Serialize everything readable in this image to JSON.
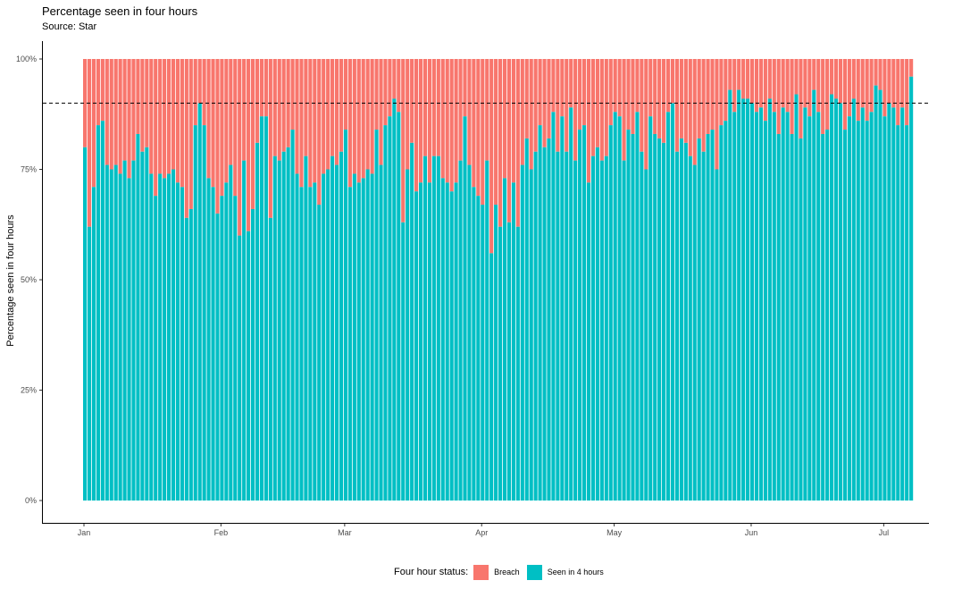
{
  "chart": {
    "title": "Percentage seen in four hours",
    "subtitle": "Source: Star"
  },
  "legend": {
    "title": "Four hour status:",
    "items": [
      {
        "label": "Breach",
        "color": "#F8766D"
      },
      {
        "label": "Seen in 4 hours",
        "color": "#00BFC4"
      }
    ]
  },
  "chart_data": {
    "type": "bar",
    "stacked": true,
    "ylabel": "Percentage seen in four hours",
    "xlabel": "",
    "ylim": [
      0,
      1
    ],
    "y_ticks": [
      "0%",
      "25%",
      "50%",
      "75%",
      "100%"
    ],
    "x_tick_labels": [
      "Jan",
      "Feb",
      "Mar",
      "Apr",
      "May",
      "Jun",
      "Jul"
    ],
    "x_range": [
      "2018-01-01",
      "2018-07-01"
    ],
    "reference_line": {
      "value": 0.9,
      "style": "dashed"
    },
    "series": [
      {
        "name": "Breach",
        "color": "#F8766D"
      },
      {
        "name": "Seen in 4 hours",
        "color": "#00BFC4"
      }
    ],
    "seen_in_4_hours": [
      0.8,
      0.62,
      0.71,
      0.85,
      0.86,
      0.76,
      0.75,
      0.76,
      0.74,
      0.77,
      0.73,
      0.77,
      0.83,
      0.79,
      0.8,
      0.74,
      0.69,
      0.74,
      0.73,
      0.74,
      0.75,
      0.72,
      0.71,
      0.64,
      0.66,
      0.85,
      0.9,
      0.85,
      0.73,
      0.71,
      0.65,
      0.69,
      0.72,
      0.76,
      0.69,
      0.6,
      0.77,
      0.61,
      0.66,
      0.81,
      0.87,
      0.87,
      0.64,
      0.78,
      0.77,
      0.79,
      0.8,
      0.84,
      0.74,
      0.71,
      0.78,
      0.71,
      0.72,
      0.67,
      0.74,
      0.75,
      0.78,
      0.76,
      0.79,
      0.84,
      0.71,
      0.74,
      0.72,
      0.73,
      0.75,
      0.74,
      0.84,
      0.76,
      0.85,
      0.87,
      0.91,
      0.88,
      0.63,
      0.75,
      0.81,
      0.7,
      0.72,
      0.78,
      0.72,
      0.78,
      0.78,
      0.73,
      0.72,
      0.7,
      0.72,
      0.77,
      0.87,
      0.76,
      0.71,
      0.69,
      0.67,
      0.77,
      0.56,
      0.67,
      0.62,
      0.73,
      0.63,
      0.72,
      0.62,
      0.76,
      0.82,
      0.75,
      0.79,
      0.85,
      0.8,
      0.82,
      0.88,
      0.79,
      0.87,
      0.79,
      0.89,
      0.77,
      0.84,
      0.85,
      0.72,
      0.78,
      0.8,
      0.77,
      0.78,
      0.85,
      0.88,
      0.87,
      0.77,
      0.84,
      0.83,
      0.88,
      0.79,
      0.75,
      0.87,
      0.83,
      0.82,
      0.81,
      0.88,
      0.9,
      0.79,
      0.82,
      0.81,
      0.78,
      0.76,
      0.82,
      0.79,
      0.83,
      0.84,
      0.75,
      0.85,
      0.86,
      0.93,
      0.88,
      0.93,
      0.91,
      0.91,
      0.9,
      0.88,
      0.89,
      0.86,
      0.91,
      0.88,
      0.83,
      0.89,
      0.88,
      0.83,
      0.92,
      0.82,
      0.89,
      0.87,
      0.93,
      0.88,
      0.83,
      0.84,
      0.92,
      0.91,
      0.9,
      0.84,
      0.87,
      0.91,
      0.86,
      0.89,
      0.86,
      0.88,
      0.94,
      0.93,
      0.87,
      0.9,
      0.89,
      0.85,
      0.89,
      0.85,
      0.96
    ]
  }
}
